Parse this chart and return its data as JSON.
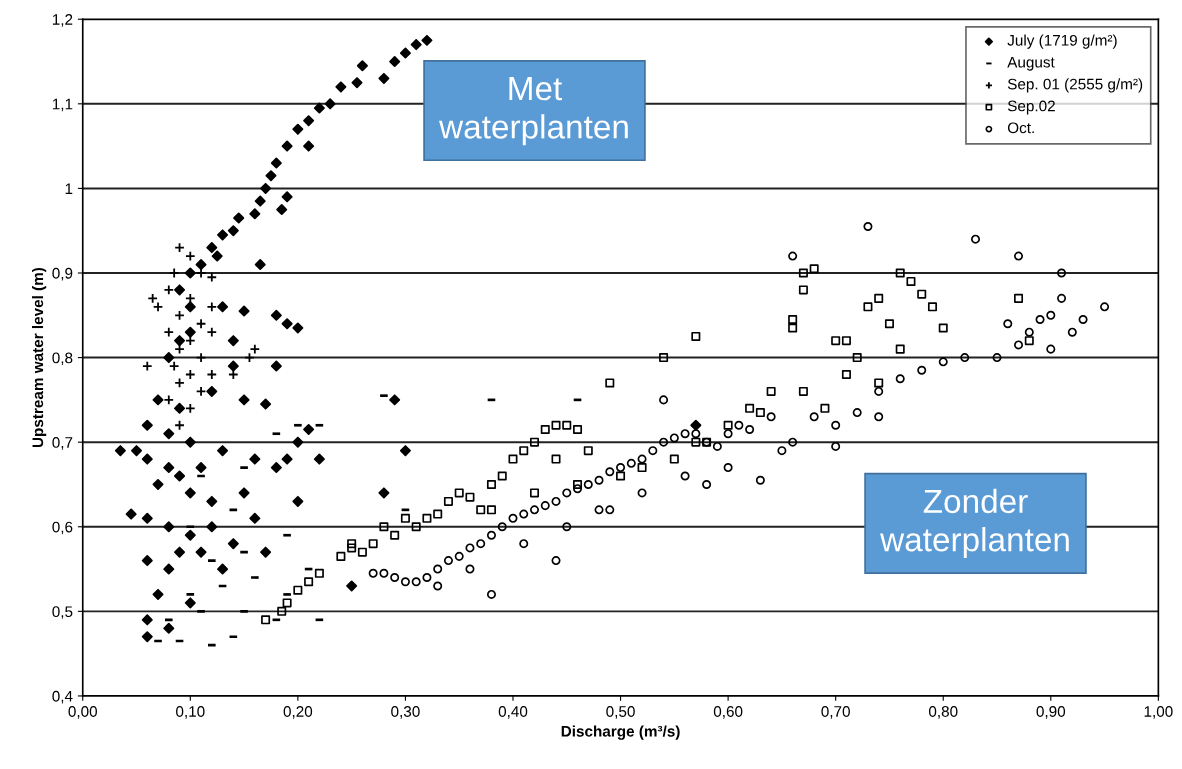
{
  "chart_data": {
    "type": "scatter",
    "xlabel": "Discharge (m³/s)",
    "ylabel": "Upstream water level (m)",
    "xlim": [
      0,
      1
    ],
    "ylim": [
      0.4,
      1.2
    ],
    "xticks": [
      {
        "value": 0,
        "label": "0,00"
      },
      {
        "value": 0.1,
        "label": "0,10"
      },
      {
        "value": 0.2,
        "label": "0,20"
      },
      {
        "value": 0.3,
        "label": "0,30"
      },
      {
        "value": 0.4,
        "label": "0,40"
      },
      {
        "value": 0.5,
        "label": "0,50"
      },
      {
        "value": 0.6,
        "label": "0,60"
      },
      {
        "value": 0.7,
        "label": "0,70"
      },
      {
        "value": 0.8,
        "label": "0,80"
      },
      {
        "value": 0.9,
        "label": "0,90"
      },
      {
        "value": 1,
        "label": "1,00"
      }
    ],
    "yticks": [
      {
        "value": 0.4,
        "label": "0,4"
      },
      {
        "value": 0.5,
        "label": "0,5"
      },
      {
        "value": 0.6,
        "label": "0,6"
      },
      {
        "value": 0.7,
        "label": "0,7"
      },
      {
        "value": 0.8,
        "label": "0,8"
      },
      {
        "value": 0.9,
        "label": "0,9"
      },
      {
        "value": 1,
        "label": "1"
      },
      {
        "value": 1.1,
        "label": "1,1"
      },
      {
        "value": 1.2,
        "label": "1,2"
      }
    ],
    "grid": "y",
    "legend": "top right",
    "annotations": [
      "Met waterplanten",
      "Zonder waterplanten"
    ],
    "series": [
      {
        "name": "July (1719 g/m²)",
        "color": "#000000",
        "marker": "diamond",
        "x": [
          0.32,
          0.31,
          0.3,
          0.29,
          0.28,
          0.26,
          0.255,
          0.24,
          0.23,
          0.22,
          0.21,
          0.2,
          0.21,
          0.19,
          0.18,
          0.175,
          0.17,
          0.19,
          0.165,
          0.16,
          0.185,
          0.145,
          0.14,
          0.13,
          0.12,
          0.125,
          0.11,
          0.1,
          0.09,
          0.165,
          0.1,
          0.15,
          0.13,
          0.18,
          0.19,
          0.2,
          0.1,
          0.09,
          0.08,
          0.14,
          0.14,
          0.18,
          0.07,
          0.09,
          0.12,
          0.15,
          0.17,
          0.21,
          0.06,
          0.08,
          0.1,
          0.035,
          0.05,
          0.06,
          0.08,
          0.09,
          0.11,
          0.13,
          0.16,
          0.19,
          0.2,
          0.22,
          0.07,
          0.1,
          0.12,
          0.15,
          0.18,
          0.29,
          0.3,
          0.045,
          0.06,
          0.08,
          0.1,
          0.12,
          0.16,
          0.2,
          0.09,
          0.11,
          0.14,
          0.17,
          0.06,
          0.08,
          0.13,
          0.07,
          0.1,
          0.06,
          0.08,
          0.06,
          0.28,
          0.25,
          0.57
        ],
        "values": [
          1.175,
          1.17,
          1.16,
          1.15,
          1.13,
          1.145,
          1.125,
          1.12,
          1.1,
          1.095,
          1.08,
          1.07,
          1.05,
          1.05,
          1.03,
          1.015,
          1.0,
          0.99,
          0.985,
          0.97,
          0.975,
          0.965,
          0.95,
          0.945,
          0.93,
          0.92,
          0.91,
          0.9,
          0.88,
          0.91,
          0.86,
          0.855,
          0.86,
          0.85,
          0.84,
          0.835,
          0.83,
          0.82,
          0.8,
          0.82,
          0.79,
          0.79,
          0.75,
          0.74,
          0.76,
          0.75,
          0.745,
          0.715,
          0.72,
          0.71,
          0.7,
          0.69,
          0.69,
          0.68,
          0.67,
          0.66,
          0.67,
          0.69,
          0.68,
          0.68,
          0.7,
          0.68,
          0.65,
          0.64,
          0.63,
          0.64,
          0.67,
          0.75,
          0.69,
          0.615,
          0.61,
          0.6,
          0.59,
          0.6,
          0.61,
          0.63,
          0.57,
          0.57,
          0.58,
          0.57,
          0.56,
          0.55,
          0.55,
          0.52,
          0.51,
          0.49,
          0.48,
          0.47,
          0.64,
          0.53,
          0.72
        ]
      },
      {
        "name": "August",
        "color": "#000000",
        "x": [
          0.07,
          0.09,
          0.12,
          0.14,
          0.08,
          0.11,
          0.15,
          0.18,
          0.22,
          0.1,
          0.13,
          0.16,
          0.19,
          0.12,
          0.15,
          0.19,
          0.1,
          0.14,
          0.11,
          0.15,
          0.18,
          0.2,
          0.28,
          0.38,
          0.46,
          0.3,
          0.21,
          0.22
        ],
        "values": [
          0.465,
          0.465,
          0.46,
          0.47,
          0.49,
          0.5,
          0.5,
          0.49,
          0.49,
          0.52,
          0.53,
          0.54,
          0.52,
          0.56,
          0.57,
          0.59,
          0.6,
          0.62,
          0.66,
          0.67,
          0.71,
          0.72,
          0.755,
          0.75,
          0.75,
          0.62,
          0.55,
          0.72
        ]
      },
      {
        "name": "Sep. 01 (2555 g/m²)",
        "color": "#000000",
        "marker": "cross",
        "x": [
          0.09,
          0.1,
          0.085,
          0.11,
          0.12,
          0.08,
          0.1,
          0.12,
          0.09,
          0.11,
          0.08,
          0.1,
          0.12,
          0.09,
          0.11,
          0.085,
          0.1,
          0.12,
          0.09,
          0.11,
          0.08,
          0.1,
          0.09,
          0.07,
          0.06,
          0.16,
          0.155,
          0.065,
          0.14
        ],
        "values": [
          0.93,
          0.92,
          0.9,
          0.9,
          0.895,
          0.88,
          0.87,
          0.86,
          0.85,
          0.84,
          0.83,
          0.82,
          0.83,
          0.81,
          0.8,
          0.79,
          0.78,
          0.78,
          0.77,
          0.76,
          0.75,
          0.74,
          0.72,
          0.86,
          0.79,
          0.81,
          0.8,
          0.87,
          0.78
        ]
      },
      {
        "name": "Sep.02",
        "color": "#000000",
        "marker": "square",
        "x": [
          0.17,
          0.185,
          0.19,
          0.2,
          0.21,
          0.22,
          0.24,
          0.25,
          0.25,
          0.26,
          0.27,
          0.28,
          0.29,
          0.3,
          0.31,
          0.32,
          0.33,
          0.34,
          0.35,
          0.36,
          0.37,
          0.38,
          0.39,
          0.4,
          0.41,
          0.42,
          0.43,
          0.44,
          0.45,
          0.46,
          0.47,
          0.38,
          0.42,
          0.44,
          0.46,
          0.49,
          0.54,
          0.57,
          0.5,
          0.52,
          0.55,
          0.58,
          0.6,
          0.62,
          0.64,
          0.66,
          0.67,
          0.67,
          0.66,
          0.68,
          0.7,
          0.71,
          0.72,
          0.73,
          0.74,
          0.75,
          0.76,
          0.77,
          0.78,
          0.79,
          0.74,
          0.71,
          0.67,
          0.69,
          0.76,
          0.63,
          0.8,
          0.87,
          0.88,
          0.57
        ],
        "values": [
          0.49,
          0.5,
          0.51,
          0.525,
          0.535,
          0.545,
          0.565,
          0.575,
          0.58,
          0.57,
          0.58,
          0.6,
          0.59,
          0.61,
          0.6,
          0.61,
          0.615,
          0.63,
          0.64,
          0.635,
          0.62,
          0.65,
          0.66,
          0.68,
          0.69,
          0.7,
          0.715,
          0.72,
          0.72,
          0.715,
          0.69,
          0.62,
          0.64,
          0.68,
          0.65,
          0.77,
          0.8,
          0.825,
          0.66,
          0.67,
          0.68,
          0.7,
          0.72,
          0.74,
          0.76,
          0.845,
          0.88,
          0.9,
          0.835,
          0.905,
          0.82,
          0.82,
          0.8,
          0.86,
          0.87,
          0.84,
          0.9,
          0.89,
          0.875,
          0.86,
          0.77,
          0.78,
          0.76,
          0.74,
          0.81,
          0.735,
          0.835,
          0.87,
          0.82,
          0.7
        ]
      },
      {
        "name": "Oct.",
        "color": "#000000",
        "marker": "circle",
        "x": [
          0.27,
          0.28,
          0.29,
          0.3,
          0.31,
          0.32,
          0.33,
          0.34,
          0.35,
          0.36,
          0.37,
          0.38,
          0.39,
          0.4,
          0.41,
          0.42,
          0.43,
          0.44,
          0.45,
          0.46,
          0.47,
          0.48,
          0.49,
          0.5,
          0.51,
          0.52,
          0.53,
          0.54,
          0.55,
          0.56,
          0.57,
          0.58,
          0.59,
          0.6,
          0.61,
          0.62,
          0.63,
          0.64,
          0.66,
          0.68,
          0.7,
          0.72,
          0.74,
          0.76,
          0.78,
          0.8,
          0.82,
          0.85,
          0.86,
          0.87,
          0.88,
          0.89,
          0.9,
          0.91,
          0.92,
          0.93,
          0.95,
          0.9,
          0.91,
          0.87,
          0.83,
          0.73,
          0.66,
          0.54,
          0.44,
          0.38,
          0.36,
          0.48,
          0.52,
          0.56,
          0.6,
          0.65,
          0.7,
          0.74,
          0.58,
          0.41,
          0.33,
          0.45,
          0.49
        ],
        "values": [
          0.545,
          0.545,
          0.54,
          0.535,
          0.535,
          0.54,
          0.55,
          0.56,
          0.565,
          0.575,
          0.58,
          0.59,
          0.6,
          0.61,
          0.615,
          0.62,
          0.625,
          0.63,
          0.64,
          0.645,
          0.65,
          0.655,
          0.665,
          0.67,
          0.675,
          0.68,
          0.69,
          0.7,
          0.705,
          0.71,
          0.71,
          0.7,
          0.695,
          0.71,
          0.72,
          0.715,
          0.655,
          0.73,
          0.7,
          0.73,
          0.72,
          0.735,
          0.76,
          0.775,
          0.785,
          0.795,
          0.8,
          0.8,
          0.84,
          0.815,
          0.83,
          0.845,
          0.85,
          0.87,
          0.83,
          0.845,
          0.86,
          0.81,
          0.9,
          0.92,
          0.94,
          0.955,
          0.92,
          0.75,
          0.56,
          0.52,
          0.55,
          0.62,
          0.64,
          0.66,
          0.67,
          0.69,
          0.695,
          0.73,
          0.65,
          0.58,
          0.53,
          0.6,
          0.62
        ]
      }
    ]
  }
}
